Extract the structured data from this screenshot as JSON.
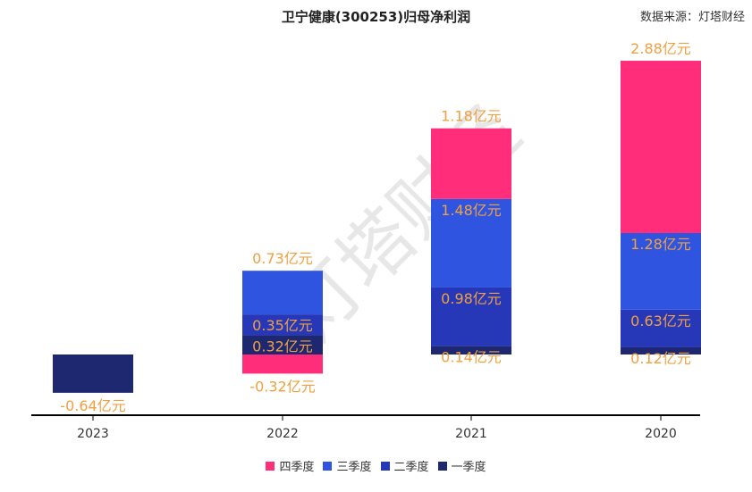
{
  "title": "卫宁健康(300253)归母净利润",
  "source": "数据来源：灯塔财经",
  "watermark": "灯塔财经",
  "chart_data": {
    "type": "bar",
    "stacked": true,
    "categories": [
      "2023",
      "2022",
      "2021",
      "2020"
    ],
    "unit": "亿元",
    "legend_position": "bottom",
    "series": [
      {
        "name": "四季度",
        "color": "#ff2d7a",
        "values": [
          null,
          -0.32,
          1.18,
          2.88
        ],
        "labels": [
          "",
          "-0.32亿元",
          "1.18亿元",
          "2.88亿元"
        ]
      },
      {
        "name": "三季度",
        "color": "#2f55e0",
        "values": [
          null,
          0.73,
          1.48,
          1.28
        ],
        "labels": [
          "",
          "0.73亿元",
          "1.48亿元",
          "1.28亿元"
        ]
      },
      {
        "name": "二季度",
        "color": "#2638b8",
        "values": [
          null,
          0.35,
          0.98,
          0.63
        ],
        "labels": [
          "",
          "0.35亿元",
          "0.98亿元",
          "0.63亿元"
        ]
      },
      {
        "name": "一季度",
        "color": "#1e2870",
        "values": [
          -0.64,
          0.32,
          0.14,
          0.12
        ],
        "labels": [
          "-0.64亿元",
          "0.32亿元",
          "0.14亿元",
          "0.12亿元"
        ]
      }
    ]
  }
}
